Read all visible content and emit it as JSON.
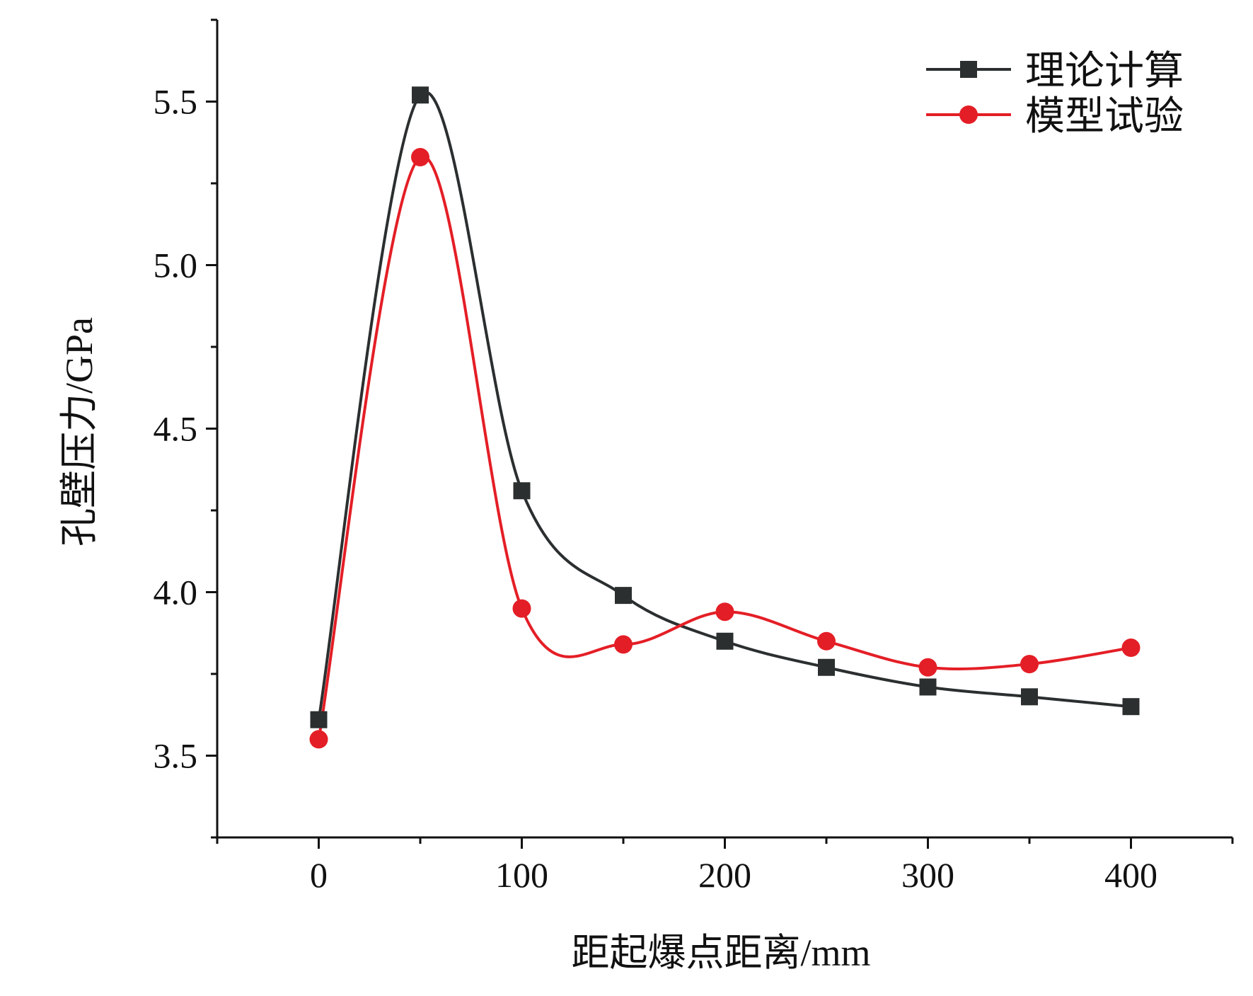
{
  "chart_data": {
    "type": "line",
    "title": "",
    "xlabel": "距起爆点距离/mm",
    "ylabel": "孔壁压力/GPa",
    "xlim": [
      -50,
      450
    ],
    "ylim": [
      3.25,
      5.75
    ],
    "xticks": [
      0,
      100,
      200,
      300,
      400
    ],
    "xtick_labels": [
      "0",
      "100",
      "200",
      "300",
      "400"
    ],
    "yticks": [
      3.5,
      4.0,
      4.5,
      5.0,
      5.5
    ],
    "ytick_labels": [
      "3.5",
      "4.0",
      "4.5",
      "5.0",
      "5.5"
    ],
    "grid": false,
    "legend_position": "top-right",
    "smooth": true,
    "x": [
      0,
      50,
      100,
      150,
      200,
      250,
      300,
      350,
      400
    ],
    "series": [
      {
        "name": "理论计算",
        "color": "#2b2f2f",
        "marker": "square",
        "values": [
          3.61,
          5.52,
          4.31,
          3.99,
          3.85,
          3.77,
          3.71,
          3.68,
          3.65
        ]
      },
      {
        "name": "模型试验",
        "color": "#e41e26",
        "marker": "circle",
        "values": [
          3.55,
          5.33,
          3.95,
          3.84,
          3.94,
          3.85,
          3.77,
          3.78,
          3.83
        ]
      }
    ]
  }
}
